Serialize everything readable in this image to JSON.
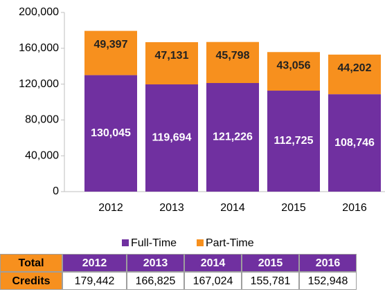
{
  "chart_data": {
    "type": "stacked_bar",
    "categories": [
      "2012",
      "2013",
      "2014",
      "2015",
      "2016"
    ],
    "series": [
      {
        "name": "Full-Time",
        "color": "#7030a0",
        "values": [
          130045,
          119694,
          121226,
          112725,
          108746
        ],
        "value_labels": [
          "130,045",
          "119,694",
          "121,226",
          "112,725",
          "108,746"
        ]
      },
      {
        "name": "Part-Time",
        "color": "#f7901e",
        "values": [
          49397,
          47131,
          45798,
          43056,
          44202
        ],
        "value_labels": [
          "49,397",
          "47,131",
          "45,798",
          "43,056",
          "44,202"
        ]
      }
    ],
    "ylim": [
      0,
      200000
    ],
    "yticks": [
      {
        "value": 0,
        "label": "0"
      },
      {
        "value": 40000,
        "label": "40,000"
      },
      {
        "value": 80000,
        "label": "80,000"
      },
      {
        "value": 120000,
        "label": "120,000"
      },
      {
        "value": 160000,
        "label": "160,000"
      },
      {
        "value": 200000,
        "label": "200,000"
      }
    ],
    "legend": "bottom",
    "table": {
      "header": [
        "Total",
        "2012",
        "2013",
        "2014",
        "2015",
        "2016"
      ],
      "rows": [
        [
          "Credits",
          "179,442",
          "166,825",
          "167,024",
          "155,781",
          "152,948"
        ]
      ]
    }
  }
}
